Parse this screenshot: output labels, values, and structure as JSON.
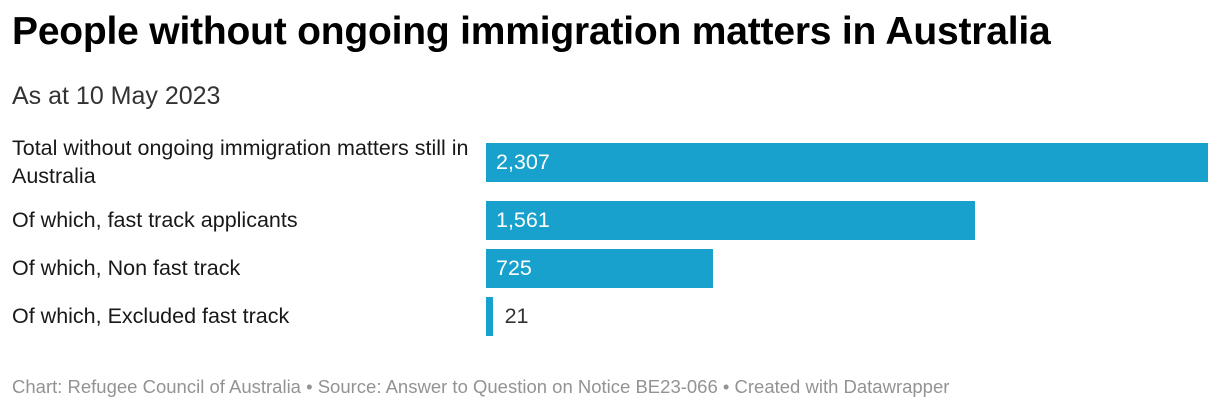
{
  "chart_data": {
    "type": "bar",
    "orientation": "horizontal",
    "title": "People without ongoing immigration matters in Australia",
    "subtitle": "As at 10 May 2023",
    "categories": [
      "Total without ongoing immigration matters still in Australia",
      "Of which, fast track applicants",
      "Of which, Non fast track",
      "Of which, Excluded fast track"
    ],
    "values": [
      2307,
      1561,
      725,
      21
    ],
    "value_labels": [
      "2,307",
      "1,561",
      "725",
      "21"
    ],
    "xlim": [
      0,
      2307
    ],
    "bar_color": "#18a1cd",
    "xlabel": "",
    "ylabel": ""
  },
  "footer": {
    "text": "Chart: Refugee Council of Australia • Source: Answer to Question on Notice BE23-066 • Created with Datawrapper"
  }
}
